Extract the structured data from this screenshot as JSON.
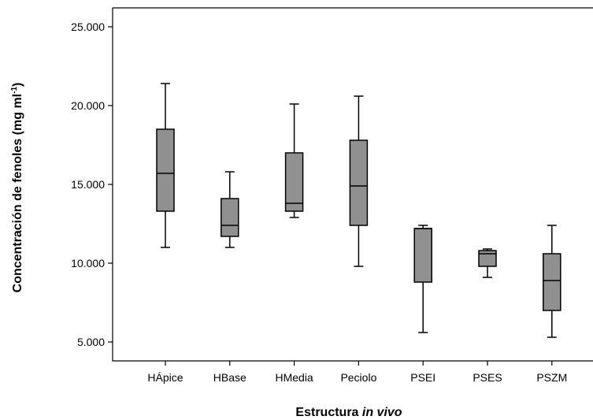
{
  "chart_data": {
    "type": "box",
    "categories": [
      "HÁpice",
      "HBase",
      "HMedia",
      "Peciolo",
      "PSEI",
      "PSES",
      "PSZM"
    ],
    "series": [
      {
        "boxes": [
          {
            "category": "HÁpice",
            "min": 11000,
            "q1": 13300,
            "median": 15700,
            "q3": 18500,
            "max": 21400
          },
          {
            "category": "HBase",
            "min": 11000,
            "q1": 11700,
            "median": 12400,
            "q3": 14100,
            "max": 15800
          },
          {
            "category": "HMedia",
            "min": 12900,
            "q1": 13300,
            "median": 13800,
            "q3": 17000,
            "max": 20100
          },
          {
            "category": "Peciolo",
            "min": 9800,
            "q1": 12400,
            "median": 14900,
            "q3": 17800,
            "max": 20600
          },
          {
            "category": "PSEI",
            "min": 5600,
            "q1": 8800,
            "median": 12200,
            "q3": 12200,
            "max": 12400
          },
          {
            "category": "PSES",
            "min": 9100,
            "q1": 9800,
            "median": 10600,
            "q3": 10800,
            "max": 10900
          },
          {
            "category": "PSZM",
            "min": 5300,
            "q1": 7000,
            "median": 8900,
            "q3": 10600,
            "max": 12400
          }
        ]
      }
    ],
    "yticks": [
      5000,
      10000,
      15000,
      20000,
      25000
    ],
    "ytick_labels": [
      "5.000",
      "10.000",
      "15.000",
      "20.000",
      "25.000"
    ],
    "ylim": [
      3800,
      26200
    ],
    "ylabel_text": "Concentración de fenoles (mg ml",
    "ylabel_sup": "-1",
    "ylabel_close": ")",
    "xlabel_prefix": "Estructura ",
    "xlabel_italic": "in vivo",
    "grid": false,
    "legend": "none",
    "colors": {
      "box_fill": "#909090",
      "stroke": "#000000",
      "background": "#ffffff"
    }
  }
}
